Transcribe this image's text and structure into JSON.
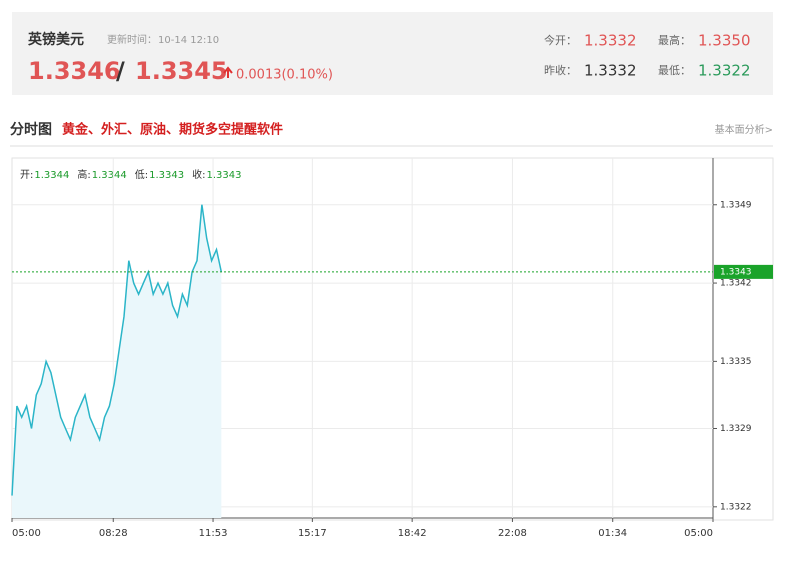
{
  "header": {
    "name": "英镑美元",
    "update_label": "更新时间：",
    "update_time": "10-14 12:10",
    "bid": "1.3346",
    "separator": "/",
    "ask": "1.3345",
    "change": "0.0013(0.10%)",
    "stats": [
      {
        "label": "今开：",
        "value": "1.3332"
      },
      {
        "label": "最高：",
        "value": "1.3350"
      },
      {
        "label": "昨收：",
        "value": "1.3332"
      },
      {
        "label": "最低：",
        "value": "1.3322"
      }
    ]
  },
  "section": {
    "title": "分时图",
    "promo": "黄金、外汇、原油、期货多空提醒软件",
    "link": "基本面分析>"
  },
  "chart_data": {
    "type": "line",
    "info": [
      {
        "label": "开:",
        "value": "1.3344"
      },
      {
        "label": "高:",
        "value": "1.3344"
      },
      {
        "label": "低:",
        "value": "1.3343"
      },
      {
        "label": "收:",
        "value": "1.3343"
      }
    ],
    "x": [
      "05:00",
      "05:10",
      "05:20",
      "05:30",
      "05:40",
      "05:50",
      "06:00",
      "06:10",
      "06:20",
      "06:30",
      "06:40",
      "06:50",
      "07:00",
      "07:10",
      "07:20",
      "07:30",
      "07:40",
      "07:50",
      "08:00",
      "08:10",
      "08:20",
      "08:30",
      "08:40",
      "08:50",
      "09:00",
      "09:10",
      "09:20",
      "09:30",
      "09:40",
      "09:50",
      "10:00",
      "10:10",
      "10:20",
      "10:30",
      "10:40",
      "10:50",
      "11:00",
      "11:10",
      "11:20",
      "11:30",
      "11:40",
      "11:50",
      "12:00",
      "12:10"
    ],
    "series": [
      {
        "color": "#2bb5c8",
        "values": [
          1.3323,
          1.3331,
          1.333,
          1.3331,
          1.3329,
          1.3332,
          1.3333,
          1.3335,
          1.3334,
          1.3332,
          1.333,
          1.3329,
          1.3328,
          1.333,
          1.3331,
          1.3332,
          1.333,
          1.3329,
          1.3328,
          1.333,
          1.3331,
          1.3333,
          1.3336,
          1.3339,
          1.3344,
          1.3342,
          1.3341,
          1.3342,
          1.3343,
          1.3341,
          1.3342,
          1.3341,
          1.3342,
          1.334,
          1.3339,
          1.3341,
          1.334,
          1.3343,
          1.3344,
          1.3349,
          1.3346,
          1.3344,
          1.3345,
          1.3343
        ]
      }
    ],
    "last": 1.3343,
    "last_color": "#1aa32a",
    "ylim": [
      1.3321,
      1.3353
    ],
    "yticks": [
      1.3349,
      1.3342,
      1.3335,
      1.3329,
      1.3322
    ],
    "xticks": [
      "05:00",
      "08:28",
      "11:53",
      "15:17",
      "18:42",
      "22:08",
      "01:34",
      "05:00"
    ],
    "grid": true
  }
}
